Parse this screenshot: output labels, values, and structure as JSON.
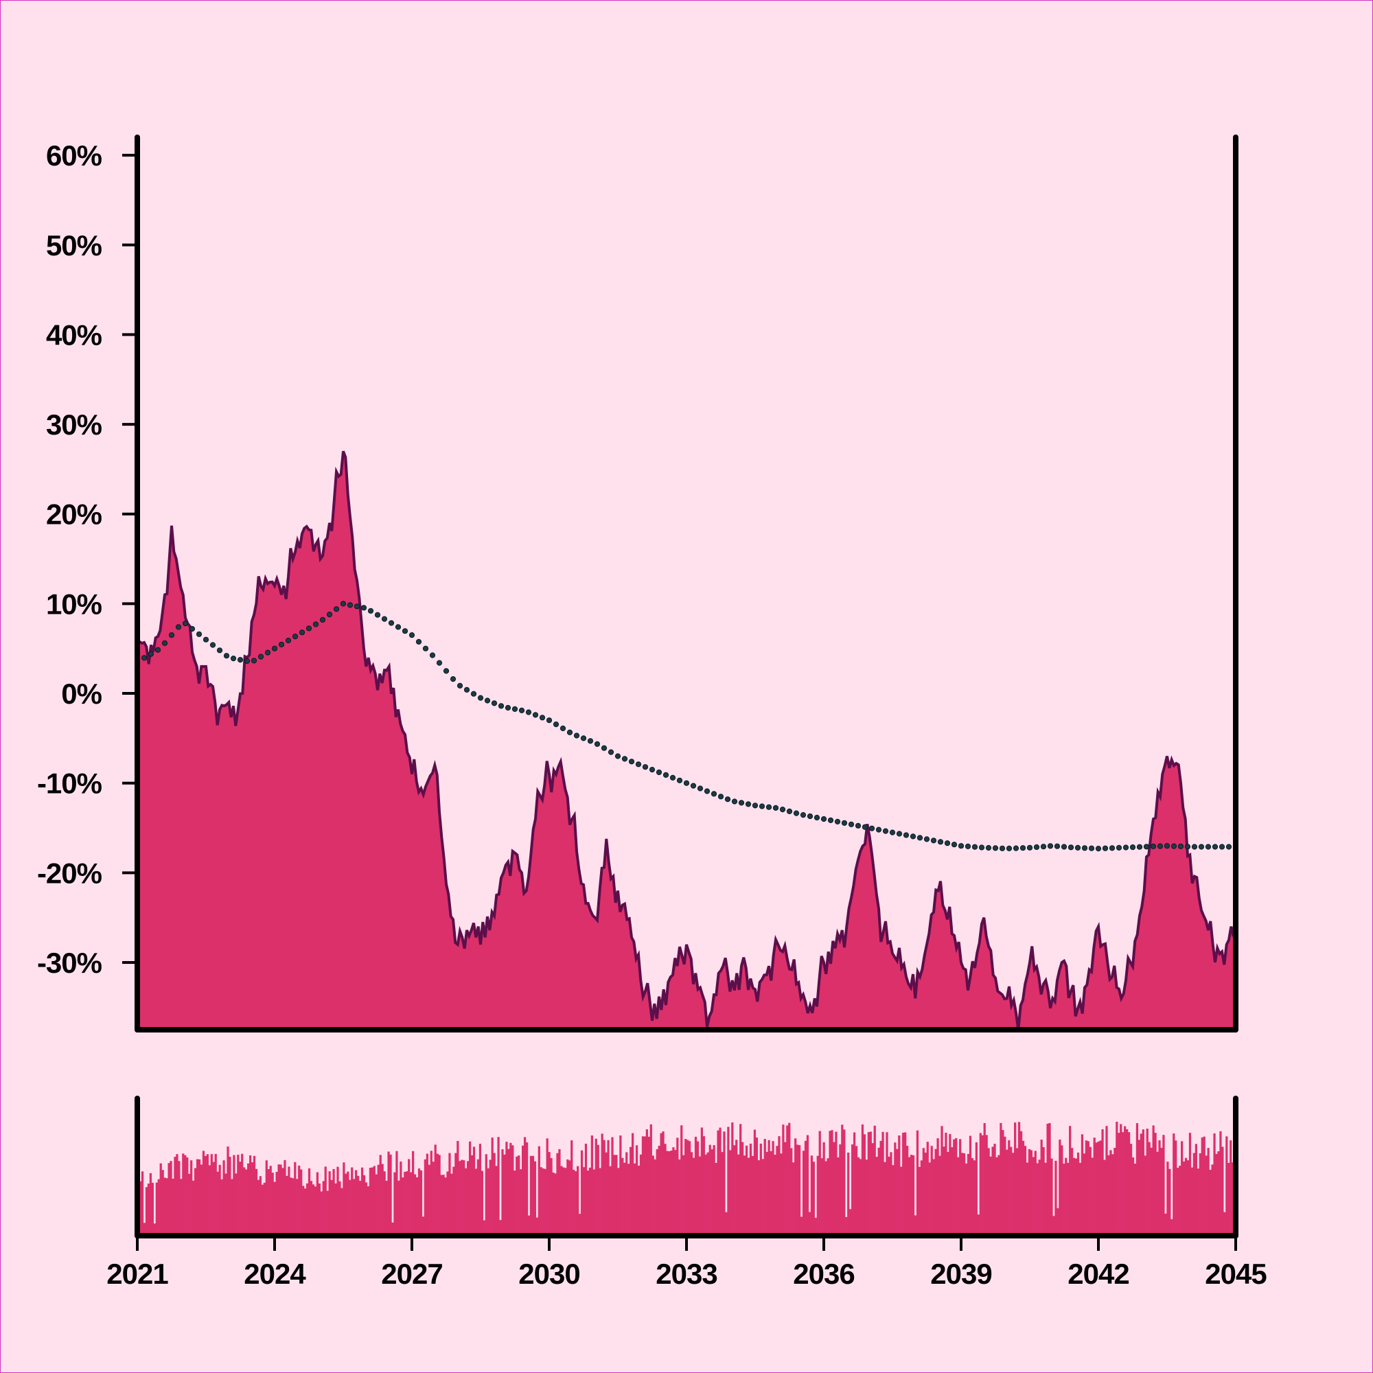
{
  "colors": {
    "background": "#ffe1ee",
    "frame": "#d02fc0",
    "area_fill": "#dc306b",
    "area_stroke": "#5c0f4a",
    "trend_dots": "#1e3a44",
    "axis": "#000000"
  },
  "chart_data": [
    {
      "type": "area",
      "name": "main-panel",
      "title": "",
      "xlabel": "",
      "ylabel": "",
      "xlim": [
        "2021-01",
        "2045-01"
      ],
      "ylim": [
        -37.5,
        62
      ],
      "y_ticks": [
        {
          "value": 60,
          "label": "60%"
        },
        {
          "value": 50,
          "label": "50%"
        },
        {
          "value": 40,
          "label": "40%"
        },
        {
          "value": 30,
          "label": "30%"
        },
        {
          "value": 20,
          "label": "20%"
        },
        {
          "value": 10,
          "label": "10%"
        },
        {
          "value": 0,
          "label": "0%"
        },
        {
          "value": -10,
          "label": "-10%"
        },
        {
          "value": -20,
          "label": "-20%"
        },
        {
          "value": -30,
          "label": "-30%"
        }
      ],
      "grid": false,
      "legend": "none",
      "series": [
        {
          "kind": "area",
          "x": [
            "2021-01",
            "2021-04",
            "2021-07",
            "2021-10",
            "2022-01",
            "2022-04",
            "2022-07",
            "2022-10",
            "2023-01",
            "2023-04",
            "2023-07",
            "2023-10",
            "2024-01",
            "2024-04",
            "2024-07",
            "2024-10",
            "2025-01",
            "2025-04",
            "2025-07",
            "2025-10",
            "2026-01",
            "2026-04",
            "2026-07",
            "2026-10",
            "2027-01",
            "2027-04",
            "2027-07",
            "2027-10",
            "2028-01",
            "2028-04",
            "2028-07",
            "2028-10",
            "2029-01",
            "2029-04",
            "2029-07",
            "2029-10",
            "2030-01",
            "2030-04",
            "2030-07",
            "2030-10",
            "2031-01",
            "2031-04",
            "2031-07",
            "2031-10",
            "2032-01",
            "2032-04",
            "2032-07",
            "2032-10",
            "2033-01",
            "2033-04",
            "2033-07",
            "2033-10",
            "2034-01",
            "2034-04",
            "2034-07",
            "2034-10",
            "2035-01",
            "2035-04",
            "2035-07",
            "2035-10",
            "2036-01",
            "2036-04",
            "2036-07",
            "2036-10",
            "2037-01",
            "2037-04",
            "2037-07",
            "2037-10",
            "2038-01",
            "2038-04",
            "2038-07",
            "2038-10",
            "2039-01",
            "2039-04",
            "2039-07",
            "2039-10",
            "2040-01",
            "2040-04",
            "2040-07",
            "2040-10",
            "2041-01",
            "2041-04",
            "2041-07",
            "2041-10",
            "2042-01",
            "2042-04",
            "2042-07",
            "2042-10",
            "2043-01",
            "2043-04",
            "2043-07",
            "2043-10",
            "2044-01",
            "2044-04",
            "2044-07",
            "2044-10",
            "2045-01"
          ],
          "values": [
            6,
            5,
            7,
            17,
            11,
            3,
            3,
            -2,
            -1,
            -2,
            8,
            13,
            12,
            12,
            17,
            19,
            15,
            20,
            27,
            15,
            3,
            2,
            3,
            -3,
            -9,
            -11,
            -8,
            -21,
            -28,
            -26,
            -28,
            -26,
            -20,
            -17,
            -22,
            -12,
            -9,
            -8,
            -14,
            -23,
            -25,
            -18,
            -22,
            -26,
            -32,
            -35,
            -33,
            -31,
            -28,
            -32,
            -36,
            -30,
            -32,
            -30,
            -33,
            -31,
            -28,
            -30,
            -34,
            -35,
            -30,
            -27,
            -26,
            -18,
            -16,
            -26,
            -29,
            -31,
            -34,
            -28,
            -22,
            -26,
            -30,
            -32,
            -25,
            -33,
            -34,
            -36,
            -30,
            -32,
            -34,
            -29,
            -36,
            -32,
            -26,
            -31,
            -34,
            -29,
            -22,
            -12,
            -7,
            -8,
            -18,
            -24,
            -28,
            -29,
            -24
          ]
        },
        {
          "kind": "dotted-trend",
          "x": [
            "2021-01",
            "2021-07",
            "2022-01",
            "2022-07",
            "2023-01",
            "2023-07",
            "2024-01",
            "2024-07",
            "2025-01",
            "2025-07",
            "2026-01",
            "2026-07",
            "2027-01",
            "2027-07",
            "2028-01",
            "2028-07",
            "2029-01",
            "2029-07",
            "2030-01",
            "2030-07",
            "2031-01",
            "2031-07",
            "2032-01",
            "2032-07",
            "2033-01",
            "2033-07",
            "2034-01",
            "2034-07",
            "2035-01",
            "2035-07",
            "2036-01",
            "2036-07",
            "2037-01",
            "2037-07",
            "2038-01",
            "2038-07",
            "2039-01",
            "2039-07",
            "2040-01",
            "2040-07",
            "2041-01",
            "2041-07",
            "2042-01",
            "2042-07",
            "2043-01",
            "2043-07",
            "2044-01",
            "2044-07",
            "2045-01"
          ],
          "values": [
            3.5,
            5,
            8,
            6,
            4,
            3.5,
            5,
            6.5,
            8,
            10,
            9.5,
            8,
            6.5,
            4,
            1,
            -0.5,
            -1.5,
            -2,
            -3,
            -4.5,
            -5.5,
            -7,
            -8,
            -9,
            -10,
            -11,
            -12,
            -12.5,
            -12.8,
            -13.5,
            -14,
            -14.5,
            -15,
            -15.5,
            -16,
            -16.5,
            -17,
            -17.2,
            -17.3,
            -17.2,
            -17,
            -17.2,
            -17.3,
            -17.2,
            -17.1,
            -17,
            -17.1,
            -17.1,
            -17.1
          ]
        }
      ]
    },
    {
      "type": "bar",
      "name": "volume-panel",
      "title": "",
      "xlabel": "",
      "ylabel": "",
      "grid": false,
      "legend": "none",
      "x_ticks": [
        "2021",
        "2024",
        "2027",
        "2030",
        "2033",
        "2036",
        "2039",
        "2042",
        "2045"
      ],
      "ylim": [
        0,
        1
      ],
      "trend_levels": {
        "x": [
          "2021",
          "2022",
          "2023",
          "2024",
          "2025",
          "2026",
          "2027",
          "2028",
          "2029",
          "2030",
          "2031",
          "2032",
          "2033",
          "2034",
          "2035",
          "2036",
          "2037",
          "2038",
          "2039",
          "2040",
          "2041",
          "2042",
          "2043",
          "2044",
          "2045"
        ],
        "values": [
          0.52,
          0.58,
          0.62,
          0.55,
          0.48,
          0.55,
          0.62,
          0.66,
          0.7,
          0.68,
          0.72,
          0.78,
          0.8,
          0.82,
          0.78,
          0.8,
          0.78,
          0.76,
          0.8,
          0.82,
          0.8,
          0.8,
          0.78,
          0.72,
          0.74
        ]
      }
    }
  ]
}
